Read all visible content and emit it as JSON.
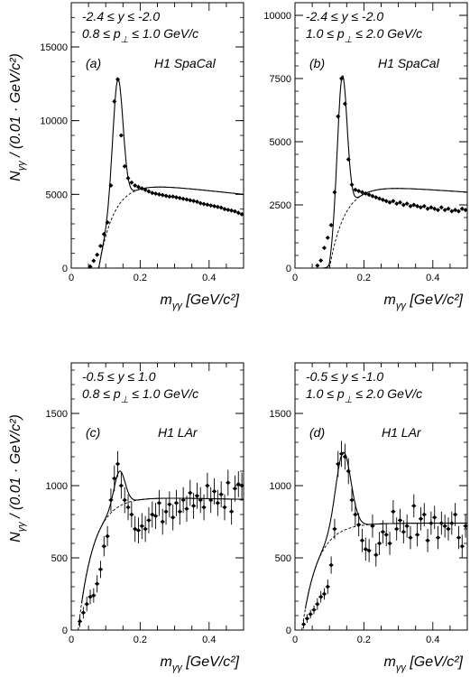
{
  "chart_data": [
    {
      "panel_label": "(a)",
      "detector": "H1 SpaCal",
      "cut_line1": "-2.4 ≤ y ≤ -2.0",
      "cut_line2": "0.8 ≤ p⊥ ≤ 1.0 GeV/c",
      "type": "scatter",
      "xlim": [
        0,
        0.5
      ],
      "ylim": [
        0,
        18000
      ],
      "xticks": [
        0,
        0.2,
        0.4
      ],
      "yticks": [
        0,
        5000,
        10000,
        15000
      ],
      "xlabel": "mγγ [GeV/c²]",
      "ylabel": "Nγγ / (0.01 · GeV/c²)",
      "peak": {
        "mass": 0.135,
        "height": 12800,
        "sigma": 0.015
      },
      "background": {
        "turn_on": 0.08,
        "level": 5800,
        "slope": -0.43
      },
      "points": [
        [
          0.055,
          100
        ],
        [
          0.065,
          500
        ],
        [
          0.075,
          900
        ],
        [
          0.085,
          1500
        ],
        [
          0.095,
          2300
        ],
        [
          0.105,
          3100
        ],
        [
          0.115,
          5600
        ],
        [
          0.125,
          11300
        ],
        [
          0.135,
          12800
        ],
        [
          0.145,
          9000
        ],
        [
          0.155,
          6900
        ],
        [
          0.165,
          6100
        ],
        [
          0.175,
          5800
        ],
        [
          0.185,
          5600
        ],
        [
          0.195,
          5500
        ],
        [
          0.205,
          5400
        ],
        [
          0.215,
          5300
        ],
        [
          0.225,
          5200
        ],
        [
          0.235,
          5100
        ],
        [
          0.245,
          5050
        ],
        [
          0.255,
          5000
        ],
        [
          0.265,
          4950
        ],
        [
          0.275,
          4900
        ],
        [
          0.285,
          4850
        ],
        [
          0.295,
          4850
        ],
        [
          0.305,
          4800
        ],
        [
          0.315,
          4750
        ],
        [
          0.325,
          4700
        ],
        [
          0.335,
          4650
        ],
        [
          0.345,
          4600
        ],
        [
          0.355,
          4550
        ],
        [
          0.365,
          4500
        ],
        [
          0.375,
          4400
        ],
        [
          0.385,
          4350
        ],
        [
          0.395,
          4300
        ],
        [
          0.405,
          4250
        ],
        [
          0.415,
          4200
        ],
        [
          0.425,
          4150
        ],
        [
          0.435,
          4100
        ],
        [
          0.445,
          4000
        ],
        [
          0.455,
          3950
        ],
        [
          0.465,
          3900
        ],
        [
          0.475,
          3850
        ],
        [
          0.485,
          3750
        ],
        [
          0.495,
          3650
        ]
      ]
    },
    {
      "panel_label": "(b)",
      "detector": "H1 SpaCal",
      "cut_line1": "-2.4 ≤ y ≤ -2.0",
      "cut_line2": "1.0 ≤ p⊥ ≤ 2.0 GeV/c",
      "type": "scatter",
      "xlim": [
        0,
        0.5
      ],
      "ylim": [
        0,
        10500
      ],
      "xticks": [
        0,
        0.2,
        0.4
      ],
      "yticks": [
        0,
        2500,
        5000,
        7500,
        10000
      ],
      "xlabel": "mγγ [GeV/c²]",
      "ylabel": "",
      "peak": {
        "mass": 0.137,
        "height": 7600,
        "sigma": 0.014
      },
      "background": {
        "turn_on": 0.1,
        "level": 3300,
        "slope": -0.28
      },
      "points": [
        [
          0.065,
          100
        ],
        [
          0.075,
          300
        ],
        [
          0.085,
          800
        ],
        [
          0.095,
          1200
        ],
        [
          0.105,
          1700
        ],
        [
          0.115,
          3000
        ],
        [
          0.125,
          6000
        ],
        [
          0.135,
          7500
        ],
        [
          0.145,
          6500
        ],
        [
          0.155,
          4300
        ],
        [
          0.165,
          3300
        ],
        [
          0.175,
          3100
        ],
        [
          0.185,
          3050
        ],
        [
          0.195,
          3000
        ],
        [
          0.205,
          2950
        ],
        [
          0.215,
          2900
        ],
        [
          0.225,
          2850
        ],
        [
          0.235,
          2800
        ],
        [
          0.245,
          2750
        ],
        [
          0.255,
          2700
        ],
        [
          0.265,
          2650
        ],
        [
          0.275,
          2600
        ],
        [
          0.285,
          2650
        ],
        [
          0.295,
          2550
        ],
        [
          0.305,
          2600
        ],
        [
          0.315,
          2500
        ],
        [
          0.325,
          2550
        ],
        [
          0.335,
          2450
        ],
        [
          0.345,
          2500
        ],
        [
          0.355,
          2450
        ],
        [
          0.365,
          2400
        ],
        [
          0.375,
          2450
        ],
        [
          0.385,
          2350
        ],
        [
          0.395,
          2400
        ],
        [
          0.405,
          2350
        ],
        [
          0.415,
          2300
        ],
        [
          0.425,
          2400
        ],
        [
          0.435,
          2300
        ],
        [
          0.445,
          2350
        ],
        [
          0.455,
          2250
        ],
        [
          0.465,
          2300
        ],
        [
          0.475,
          2250
        ],
        [
          0.485,
          2350
        ],
        [
          0.495,
          2300
        ]
      ]
    },
    {
      "panel_label": "(c)",
      "detector": "H1 LAr",
      "cut_line1": "-0.5 ≤ y ≤ 1.0",
      "cut_line2": "0.8 ≤ p⊥ ≤ 1.0 GeV/c",
      "type": "scatter",
      "xlim": [
        0,
        0.5
      ],
      "ylim": [
        0,
        1850
      ],
      "xticks": [
        0,
        0.2,
        0.4
      ],
      "yticks": [
        0,
        500,
        1000,
        1500
      ],
      "xlabel": "mγγ [GeV/c²]",
      "ylabel": "Nγγ / (0.01 · GeV/c²)",
      "peak": {
        "mass": 0.14,
        "height": 1100,
        "sigma": 0.016
      },
      "background": {
        "turn_on": 0.02,
        "level": 920,
        "slope": -0.05
      },
      "points": [
        [
          0.025,
          60,
          40
        ],
        [
          0.035,
          120,
          40
        ],
        [
          0.045,
          180,
          50
        ],
        [
          0.055,
          230,
          50
        ],
        [
          0.065,
          240,
          50
        ],
        [
          0.075,
          320,
          60
        ],
        [
          0.085,
          420,
          60
        ],
        [
          0.095,
          580,
          70
        ],
        [
          0.105,
          650,
          70
        ],
        [
          0.115,
          900,
          80
        ],
        [
          0.125,
          1050,
          90
        ],
        [
          0.135,
          1150,
          90
        ],
        [
          0.145,
          1000,
          90
        ],
        [
          0.155,
          900,
          90
        ],
        [
          0.165,
          850,
          90
        ],
        [
          0.175,
          800,
          90
        ],
        [
          0.185,
          700,
          90
        ],
        [
          0.195,
          690,
          90
        ],
        [
          0.205,
          720,
          90
        ],
        [
          0.215,
          700,
          90
        ],
        [
          0.225,
          760,
          90
        ],
        [
          0.235,
          800,
          90
        ],
        [
          0.245,
          790,
          90
        ],
        [
          0.255,
          880,
          90
        ],
        [
          0.265,
          750,
          90
        ],
        [
          0.275,
          820,
          90
        ],
        [
          0.285,
          870,
          90
        ],
        [
          0.295,
          780,
          90
        ],
        [
          0.305,
          880,
          90
        ],
        [
          0.315,
          820,
          90
        ],
        [
          0.325,
          900,
          90
        ],
        [
          0.335,
          840,
          90
        ],
        [
          0.345,
          950,
          90
        ],
        [
          0.355,
          860,
          90
        ],
        [
          0.365,
          930,
          90
        ],
        [
          0.375,
          900,
          90
        ],
        [
          0.385,
          850,
          90
        ],
        [
          0.395,
          1000,
          90
        ],
        [
          0.405,
          900,
          90
        ],
        [
          0.415,
          960,
          90
        ],
        [
          0.425,
          880,
          90
        ],
        [
          0.435,
          940,
          90
        ],
        [
          0.445,
          850,
          90
        ],
        [
          0.455,
          1020,
          90
        ],
        [
          0.465,
          820,
          90
        ],
        [
          0.475,
          980,
          90
        ],
        [
          0.485,
          1010,
          90
        ],
        [
          0.495,
          1000,
          90
        ]
      ]
    },
    {
      "panel_label": "(d)",
      "detector": "H1 LAr",
      "cut_line1": "-0.5 ≤ y ≤ -1.0",
      "cut_line2": "1.0 ≤ p⊥ ≤ 2.0 GeV/c",
      "type": "scatter",
      "xlim": [
        0,
        0.5
      ],
      "ylim": [
        0,
        1850
      ],
      "xticks": [
        0,
        0.2,
        0.4
      ],
      "yticks": [
        0,
        500,
        1000,
        1500
      ],
      "xlabel": "mγγ [GeV/c²]",
      "ylabel": "",
      "peak": {
        "mass": 0.14,
        "height": 1230,
        "sigma": 0.022
      },
      "background": {
        "turn_on": 0.02,
        "level": 740,
        "slope": 0
      },
      "points": [
        [
          0.025,
          40,
          30
        ],
        [
          0.035,
          80,
          30
        ],
        [
          0.045,
          110,
          30
        ],
        [
          0.055,
          140,
          30
        ],
        [
          0.065,
          180,
          40
        ],
        [
          0.075,
          230,
          40
        ],
        [
          0.085,
          250,
          40
        ],
        [
          0.095,
          300,
          50
        ],
        [
          0.105,
          450,
          60
        ],
        [
          0.115,
          700,
          70
        ],
        [
          0.125,
          1150,
          90
        ],
        [
          0.135,
          1220,
          90
        ],
        [
          0.145,
          1200,
          90
        ],
        [
          0.155,
          1100,
          90
        ],
        [
          0.165,
          900,
          80
        ],
        [
          0.175,
          800,
          80
        ],
        [
          0.185,
          730,
          80
        ],
        [
          0.195,
          620,
          80
        ],
        [
          0.205,
          560,
          80
        ],
        [
          0.215,
          550,
          80
        ],
        [
          0.225,
          720,
          80
        ],
        [
          0.235,
          520,
          80
        ],
        [
          0.245,
          600,
          80
        ],
        [
          0.255,
          680,
          80
        ],
        [
          0.265,
          660,
          80
        ],
        [
          0.275,
          600,
          80
        ],
        [
          0.285,
          820,
          80
        ],
        [
          0.295,
          700,
          80
        ],
        [
          0.305,
          760,
          80
        ],
        [
          0.315,
          680,
          80
        ],
        [
          0.325,
          720,
          80
        ],
        [
          0.335,
          640,
          80
        ],
        [
          0.345,
          860,
          80
        ],
        [
          0.355,
          660,
          80
        ],
        [
          0.365,
          770,
          80
        ],
        [
          0.375,
          800,
          80
        ],
        [
          0.385,
          620,
          80
        ],
        [
          0.395,
          740,
          80
        ],
        [
          0.405,
          780,
          80
        ],
        [
          0.415,
          640,
          80
        ],
        [
          0.425,
          740,
          80
        ],
        [
          0.435,
          720,
          80
        ],
        [
          0.445,
          700,
          80
        ],
        [
          0.455,
          740,
          80
        ],
        [
          0.465,
          800,
          80
        ],
        [
          0.475,
          640,
          80
        ],
        [
          0.485,
          580,
          80
        ],
        [
          0.495,
          720,
          80
        ]
      ]
    }
  ]
}
